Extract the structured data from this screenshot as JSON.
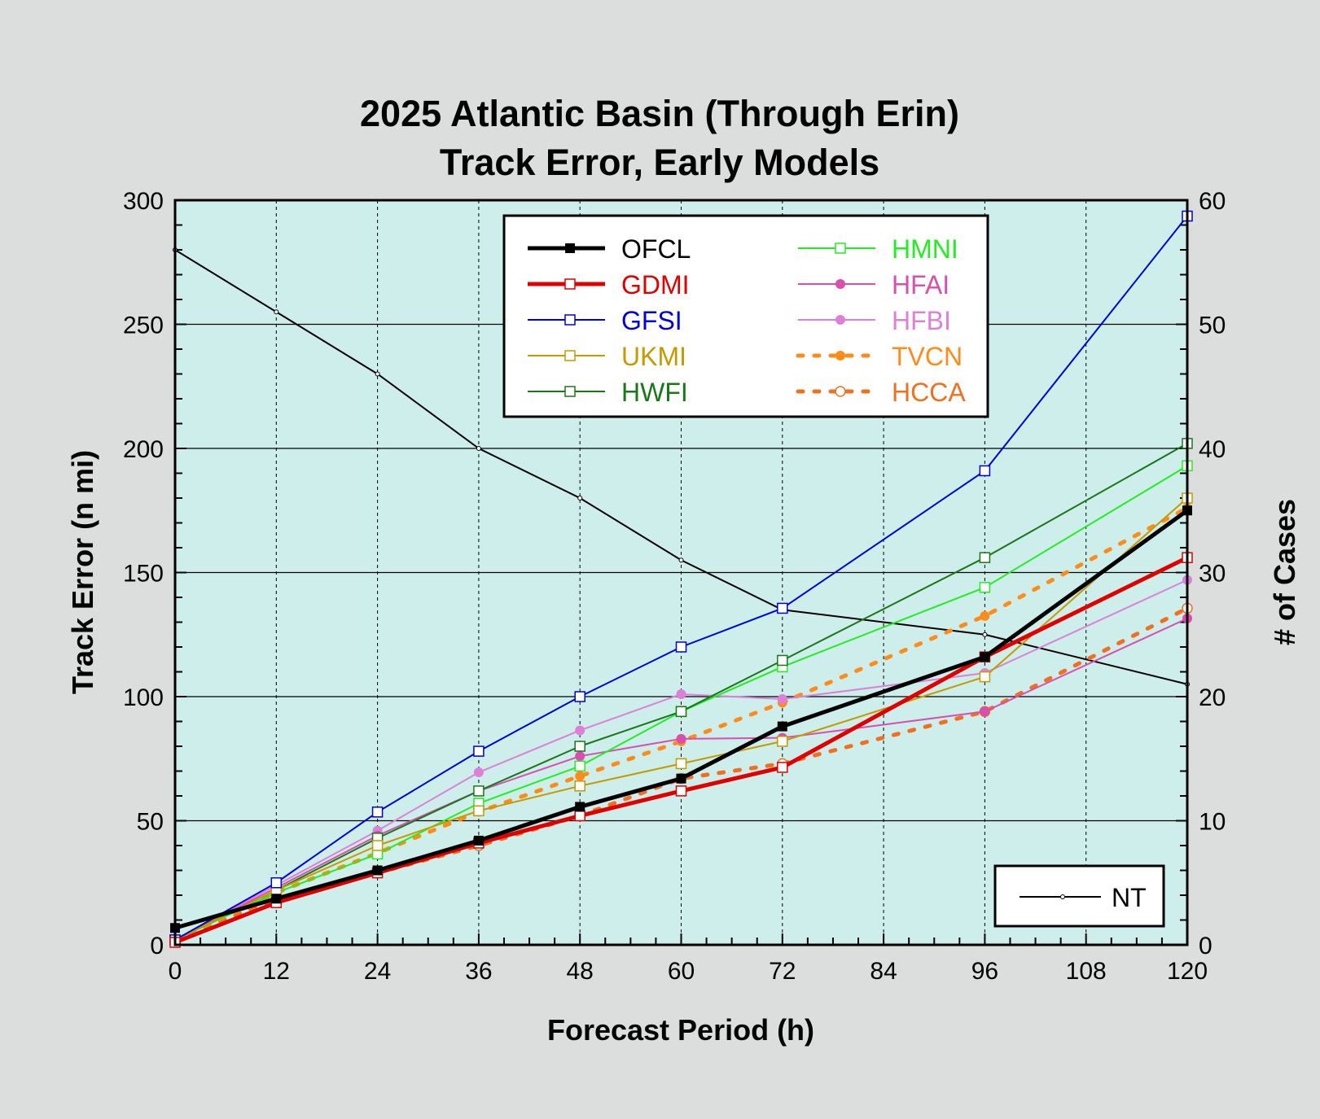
{
  "chart_data": {
    "type": "line",
    "title": [
      "2025 Atlantic Basin (Through Erin)",
      "Track Error, Early Models"
    ],
    "xlabel": "Forecast Period (h)",
    "ylabel": "Track Error (n mi)",
    "y2label": "# of Cases",
    "x": [
      0,
      12,
      24,
      36,
      48,
      60,
      72,
      96,
      120
    ],
    "xticks": [
      0,
      12,
      24,
      36,
      48,
      60,
      72,
      84,
      96,
      108,
      120
    ],
    "xlim": [
      0,
      120
    ],
    "ylim": [
      0,
      300
    ],
    "yticks": [
      0,
      50,
      100,
      150,
      200,
      250,
      300
    ],
    "y2lim": [
      0,
      60
    ],
    "y2ticks": [
      0,
      10,
      20,
      30,
      40,
      50,
      60
    ],
    "grid": true,
    "legend_placement": "top-center",
    "series": [
      {
        "name": "OFCL",
        "color": "#000000",
        "style": "solid",
        "width": 5,
        "marker": "filled-square",
        "values": [
          6.8,
          18.6,
          30,
          42,
          55.6,
          67,
          88,
          116,
          175
        ]
      },
      {
        "name": "GDMI",
        "color": "#e00000",
        "style": "solid",
        "width": 5,
        "marker": "open-square",
        "values": [
          1,
          17,
          29,
          41,
          52,
          62,
          71.5,
          116,
          156
        ]
      },
      {
        "name": "GFSI",
        "color": "#0000dd",
        "style": "solid",
        "width": 2,
        "marker": "open-square",
        "values": [
          2,
          25,
          53.5,
          78,
          100,
          120,
          135.6,
          191,
          293.6
        ]
      },
      {
        "name": "UKMI",
        "color": "#c49a00",
        "style": "solid",
        "width": 2,
        "marker": "open-square",
        "values": [
          2,
          22,
          40,
          54,
          64,
          73,
          82,
          108,
          180
        ]
      },
      {
        "name": "HWFI",
        "color": "#187818",
        "style": "solid",
        "width": 2,
        "marker": "open-square",
        "values": [
          2,
          22,
          43,
          62,
          80,
          94,
          114.6,
          156,
          202
        ]
      },
      {
        "name": "HMNI",
        "color": "#22ee22",
        "style": "solid",
        "width": 2,
        "marker": "open-square",
        "values": [
          2,
          21,
          36.6,
          57,
          72,
          94,
          112,
          144,
          193
        ]
      },
      {
        "name": "HFAI",
        "color": "#d84fb0",
        "style": "solid",
        "width": 2,
        "marker": "filled-circle",
        "values": [
          2,
          23,
          44,
          62,
          76,
          83,
          83.4,
          94,
          131.5
        ]
      },
      {
        "name": "HFBI",
        "color": "#dd80d8",
        "style": "solid",
        "width": 2,
        "marker": "filled-circle",
        "values": [
          2,
          24,
          46,
          69.5,
          86.4,
          101,
          99,
          109.5,
          147
        ]
      },
      {
        "name": "TVCN",
        "color": "#ff8c1a",
        "style": "dotted",
        "width": 5,
        "marker": "filled-circle",
        "values": [
          2,
          21,
          37,
          53.6,
          68,
          82,
          97.6,
          132.5,
          176
        ]
      },
      {
        "name": "HCCA",
        "color": "#f07020",
        "style": "dotted",
        "width": 5,
        "marker": "open-circle",
        "values": [
          2,
          18.6,
          29,
          40,
          52,
          67,
          73,
          94,
          135.6
        ]
      }
    ],
    "secondary_series": {
      "name": "NT",
      "axis": "right",
      "color": "#000000",
      "values": [
        56,
        51,
        46,
        40,
        36,
        31,
        27,
        25,
        21
      ]
    }
  },
  "colors": {
    "background": "#dcdedd",
    "plot_background": "#cdeeea"
  }
}
